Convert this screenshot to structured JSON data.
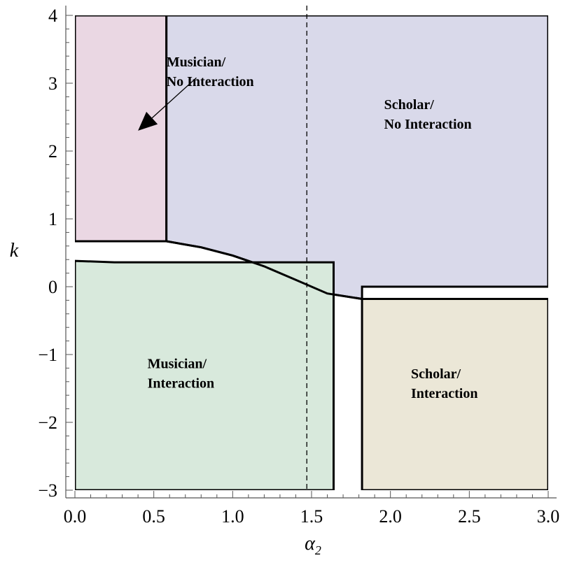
{
  "chart_data": {
    "type": "region-plot",
    "xlabel": "α",
    "xlabel_subscript": "2",
    "ylabel": "k",
    "xlim": [
      0,
      3
    ],
    "ylim": [
      -3,
      4
    ],
    "x_ticks": [
      {
        "value": 0.0,
        "label": "0.0"
      },
      {
        "value": 0.5,
        "label": "0.5"
      },
      {
        "value": 1.0,
        "label": "1.0"
      },
      {
        "value": 1.5,
        "label": "1.5"
      },
      {
        "value": 2.0,
        "label": "2.0"
      },
      {
        "value": 2.5,
        "label": "2.5"
      },
      {
        "value": 3.0,
        "label": "3.0"
      }
    ],
    "y_ticks": [
      {
        "value": 4,
        "label": "4"
      },
      {
        "value": 3,
        "label": "3"
      },
      {
        "value": 2,
        "label": "2"
      },
      {
        "value": 1,
        "label": "1"
      },
      {
        "value": 0,
        "label": "0"
      },
      {
        "value": -1,
        "label": "−1"
      },
      {
        "value": -2,
        "label": "−2"
      },
      {
        "value": -3,
        "label": "−3"
      }
    ],
    "dashed_vline": 1.47,
    "regions": [
      {
        "id": "musician-no-interaction",
        "lines": [
          "Musician/",
          "No Interaction"
        ],
        "color": "#ead7e3",
        "polygon": [
          [
            0,
            0.67
          ],
          [
            0.58,
            0.67
          ],
          [
            0.58,
            4
          ],
          [
            0,
            4
          ]
        ],
        "label_at": [
          0.58,
          3.25
        ]
      },
      {
        "id": "scholar-no-interaction",
        "lines": [
          "Scholar/",
          "No Interaction"
        ],
        "color": "#d9d9ea",
        "polygon": [
          [
            0.58,
            4
          ],
          [
            3,
            4
          ],
          [
            3,
            0
          ],
          [
            1.82,
            0
          ],
          [
            1.82,
            -0.18
          ],
          [
            1.6,
            -0.1
          ],
          [
            1.4,
            0.1
          ],
          [
            1.2,
            0.3
          ],
          [
            1.0,
            0.46
          ],
          [
            0.8,
            0.58
          ],
          [
            0.58,
            0.67
          ]
        ],
        "label_at": [
          1.96,
          2.62
        ]
      },
      {
        "id": "musician-interaction",
        "lines": [
          "Musician/",
          "Interaction"
        ],
        "color": "#d8e9dc",
        "polygon": [
          [
            0,
            0.38
          ],
          [
            0.25,
            0.36
          ],
          [
            1.64,
            0.36
          ],
          [
            1.64,
            -3
          ],
          [
            0,
            -3
          ]
        ],
        "label_at": [
          0.46,
          -1.2
        ]
      },
      {
        "id": "scholar-interaction",
        "lines": [
          "Scholar/",
          "Interaction"
        ],
        "color": "#ebe7d7",
        "polygon": [
          [
            1.82,
            -0.18
          ],
          [
            3,
            -0.18
          ],
          [
            3,
            -3
          ],
          [
            1.82,
            -3
          ]
        ],
        "label_at": [
          2.13,
          -1.35
        ]
      }
    ],
    "boundary_curve": [
      [
        0.58,
        0.67
      ],
      [
        0.8,
        0.58
      ],
      [
        1.0,
        0.46
      ],
      [
        1.2,
        0.3
      ],
      [
        1.4,
        0.1
      ],
      [
        1.6,
        -0.1
      ],
      [
        1.82,
        -0.18
      ]
    ],
    "arrow": {
      "from": [
        0.77,
        3.08
      ],
      "to": [
        0.4,
        2.3
      ]
    }
  }
}
